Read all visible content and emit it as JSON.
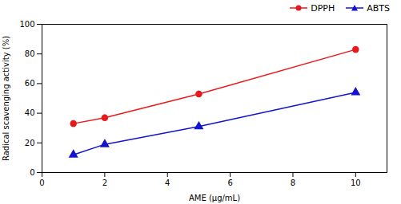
{
  "chart_data": {
    "type": "line",
    "xlabel": "AME (μg/mL)",
    "ylabel": "Radical scavenging activity (%)",
    "x": [
      1,
      2,
      5,
      10
    ],
    "series": [
      {
        "name": "DPPH",
        "color": "#e8191a",
        "marker": "circle",
        "values": [
          33,
          37,
          53,
          83
        ],
        "yerr": [
          1.5,
          2.0,
          2.0,
          1.5
        ]
      },
      {
        "name": "ABTS",
        "color": "#1414cc",
        "marker": "triangle",
        "values": [
          12,
          19,
          31,
          54
        ],
        "yerr": [
          1.0,
          1.0,
          1.5,
          1.5
        ]
      }
    ],
    "xlim": [
      0,
      11
    ],
    "ylim": [
      0,
      100
    ],
    "xticks": [
      0,
      2,
      4,
      6,
      8,
      10
    ],
    "yticks": [
      0,
      20,
      40,
      60,
      80,
      100
    ],
    "grid": false,
    "legend": "upper right"
  }
}
